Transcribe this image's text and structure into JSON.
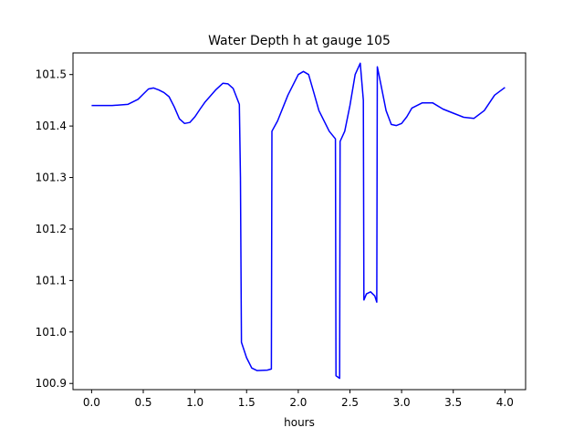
{
  "chart_data": {
    "type": "line",
    "title": "Water Depth h at gauge 105",
    "xlabel": "hours",
    "ylabel": "",
    "xlim": [
      -0.18,
      4.2
    ],
    "ylim": [
      100.888,
      101.542
    ],
    "xticks": [
      "0.0",
      "0.5",
      "1.0",
      "1.5",
      "2.0",
      "2.5",
      "3.0",
      "3.5",
      "4.0"
    ],
    "yticks": [
      "100.9",
      "101.0",
      "101.1",
      "101.2",
      "101.3",
      "101.4",
      "101.5"
    ],
    "grid": false,
    "series": [
      {
        "color": "#0000ff",
        "x": [
          0.0,
          0.2,
          0.35,
          0.45,
          0.5,
          0.55,
          0.6,
          0.65,
          0.7,
          0.75,
          0.8,
          0.85,
          0.9,
          0.95,
          1.0,
          1.05,
          1.1,
          1.2,
          1.27,
          1.32,
          1.37,
          1.43,
          1.44,
          1.45,
          1.5,
          1.55,
          1.6,
          1.7,
          1.74,
          1.745,
          1.8,
          1.9,
          2.0,
          2.05,
          2.1,
          2.15,
          2.2,
          2.3,
          2.36,
          2.365,
          2.4,
          2.405,
          2.45,
          2.5,
          2.55,
          2.6,
          2.63,
          2.635,
          2.66,
          2.7,
          2.74,
          2.76,
          2.765,
          2.8,
          2.85,
          2.9,
          2.95,
          3.0,
          3.05,
          3.1,
          3.2,
          3.3,
          3.4,
          3.5,
          3.6,
          3.7,
          3.8,
          3.9,
          4.0
        ],
        "y": [
          101.44,
          101.44,
          101.442,
          101.452,
          101.462,
          101.472,
          101.474,
          101.47,
          101.465,
          101.457,
          101.437,
          101.414,
          101.405,
          101.407,
          101.418,
          101.433,
          101.447,
          101.47,
          101.483,
          101.482,
          101.473,
          101.442,
          101.3,
          100.98,
          100.95,
          100.93,
          100.925,
          100.926,
          100.928,
          101.39,
          101.41,
          101.46,
          101.5,
          101.506,
          101.5,
          101.465,
          101.43,
          101.39,
          101.375,
          100.915,
          100.91,
          101.37,
          101.39,
          101.44,
          101.5,
          101.522,
          101.45,
          101.062,
          101.074,
          101.078,
          101.07,
          101.058,
          101.515,
          101.48,
          101.43,
          101.403,
          101.401,
          101.405,
          101.418,
          101.435,
          101.445,
          101.445,
          101.433,
          101.425,
          101.417,
          101.415,
          101.43,
          101.46,
          101.475
        ]
      }
    ]
  }
}
